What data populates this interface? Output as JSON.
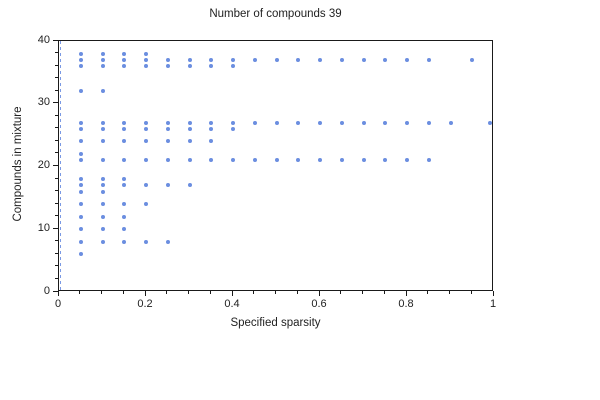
{
  "figure": {
    "background": "#ffffff",
    "axis_color": "#1a1a1a",
    "text_color": "#222222"
  },
  "chart_data": {
    "type": "scatter",
    "title": "Number of compounds 39",
    "xlabel": "Specified sparsity",
    "ylabel": "Compounds in mixture",
    "xlim": [
      0,
      1
    ],
    "ylim": [
      0,
      40
    ],
    "xticks": [
      0,
      0.2,
      0.4,
      0.6,
      0.8,
      1
    ],
    "xtick_labels": [
      "0",
      "0.2",
      "0.4",
      "0.6",
      "0.8",
      "1"
    ],
    "yticks": [
      0,
      10,
      20,
      30,
      40
    ],
    "ytick_labels": [
      "0",
      "10",
      "20",
      "30",
      "40"
    ],
    "x_minor_step": 0.05,
    "y_minor_step": 2,
    "grid": false,
    "legend": "none",
    "marker_color": "#6b8ee0",
    "zero_reference_line": {
      "x": 0,
      "style": "dashed",
      "color": "#7a99e4"
    },
    "series": [
      {
        "y": 38,
        "x": [
          0.05,
          0.1,
          0.15,
          0.2
        ]
      },
      {
        "y": 37,
        "x": [
          0.05,
          0.1,
          0.15,
          0.2,
          0.25,
          0.3,
          0.35,
          0.4,
          0.45,
          0.5,
          0.55,
          0.6,
          0.65,
          0.7,
          0.75,
          0.8,
          0.85,
          0.95
        ]
      },
      {
        "y": 36,
        "x": [
          0.05,
          0.1,
          0.15,
          0.2,
          0.25,
          0.3,
          0.35,
          0.4
        ]
      },
      {
        "y": 32,
        "x": [
          0.05,
          0.1
        ]
      },
      {
        "y": 27,
        "x": [
          0.05,
          0.1,
          0.15,
          0.2,
          0.25,
          0.3,
          0.35,
          0.4,
          0.45,
          0.5,
          0.55,
          0.6,
          0.65,
          0.7,
          0.75,
          0.8,
          0.85,
          0.9,
          0.99
        ]
      },
      {
        "y": 26,
        "x": [
          0.05,
          0.1,
          0.15,
          0.2,
          0.25,
          0.3,
          0.35,
          0.4
        ]
      },
      {
        "y": 24,
        "x": [
          0.05,
          0.1,
          0.15,
          0.2,
          0.25,
          0.3,
          0.35
        ]
      },
      {
        "y": 22,
        "x": [
          0.05
        ]
      },
      {
        "y": 21,
        "x": [
          0.05,
          0.1,
          0.15,
          0.2,
          0.25,
          0.3,
          0.35,
          0.4,
          0.45,
          0.5,
          0.55,
          0.6,
          0.65,
          0.7,
          0.75,
          0.8,
          0.85
        ]
      },
      {
        "y": 18,
        "x": [
          0.05,
          0.1,
          0.15
        ]
      },
      {
        "y": 17,
        "x": [
          0.05,
          0.1,
          0.15,
          0.2,
          0.25,
          0.3
        ]
      },
      {
        "y": 16,
        "x": [
          0.05,
          0.1
        ]
      },
      {
        "y": 14,
        "x": [
          0.05,
          0.1,
          0.15,
          0.2
        ]
      },
      {
        "y": 12,
        "x": [
          0.05,
          0.1,
          0.15
        ]
      },
      {
        "y": 10,
        "x": [
          0.05,
          0.1,
          0.15
        ]
      },
      {
        "y": 8,
        "x": [
          0.05,
          0.1,
          0.15,
          0.2,
          0.25
        ]
      },
      {
        "y": 6,
        "x": [
          0.05
        ]
      }
    ]
  }
}
